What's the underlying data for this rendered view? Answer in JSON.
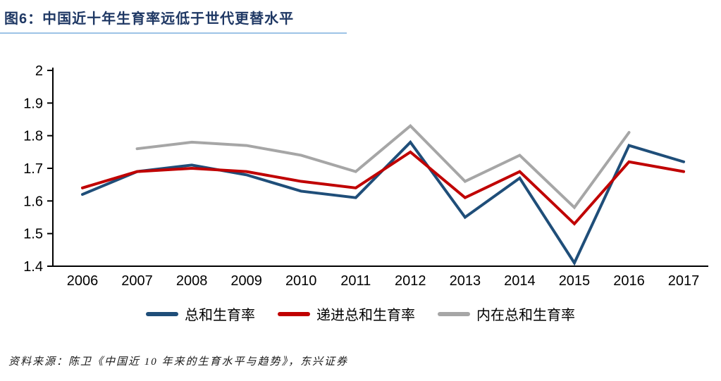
{
  "header": {
    "title": "图6：中国近十年生育率远低于世代更替水平"
  },
  "footer": {
    "source": "资料来源：陈卫《中国近 10 年来的生育水平与趋势》，东兴证券"
  },
  "colors": {
    "title": "#1F3864",
    "title_underline": "#9DC3E6",
    "axis": "#000000",
    "tick_text": "#000000",
    "series_blue": "#1F4E79",
    "series_red": "#C00000",
    "series_gray": "#A6A6A6"
  },
  "chart_data": {
    "type": "line",
    "title": "",
    "xlabel": "",
    "ylabel": "",
    "x": [
      2006,
      2007,
      2008,
      2009,
      2010,
      2011,
      2012,
      2013,
      2014,
      2015,
      2016,
      2017
    ],
    "series": [
      {
        "name": "总和生育率",
        "color": "#1F4E79",
        "values": [
          1.62,
          1.69,
          1.71,
          1.68,
          1.63,
          1.61,
          1.78,
          1.55,
          1.67,
          1.41,
          1.77,
          1.72
        ]
      },
      {
        "name": "递进总和生育率",
        "color": "#C00000",
        "values": [
          1.64,
          1.69,
          1.7,
          1.69,
          1.66,
          1.64,
          1.75,
          1.61,
          1.69,
          1.53,
          1.72,
          1.69
        ]
      },
      {
        "name": "内在总和生育率",
        "color": "#A6A6A6",
        "values": [
          null,
          1.76,
          1.78,
          1.77,
          1.74,
          1.69,
          1.83,
          1.66,
          1.74,
          1.58,
          1.81,
          null
        ]
      }
    ],
    "ylim": [
      1.4,
      2.0
    ],
    "yticks": [
      2.0,
      1.9,
      1.8,
      1.7,
      1.6,
      1.5,
      1.4
    ],
    "ytick_labels": [
      "2",
      "1.9",
      "1.8",
      "1.7",
      "1.6",
      "1.5",
      "1.4"
    ],
    "grid": false,
    "legend_position": "bottom",
    "draw_order": [
      2,
      0,
      1
    ]
  }
}
